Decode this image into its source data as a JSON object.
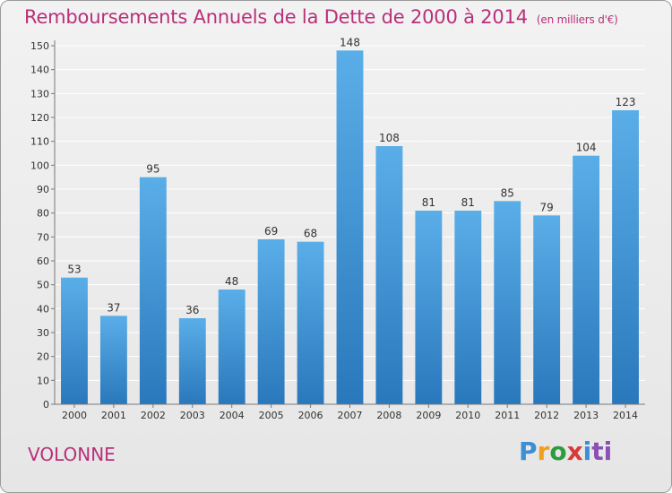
{
  "header": {
    "title": "Remboursements Annuels de la Dette de 2000 à 2014",
    "unit": "(en milliers d'€)"
  },
  "footer": {
    "town": "VOLONNE",
    "logo_letters": [
      "P",
      "r",
      "o",
      "x",
      "i",
      "ti"
    ]
  },
  "colors": {
    "title": "#b8307a",
    "bar_top": "#5aaee8",
    "bar_bottom": "#2a78bc",
    "grid": "#ffffff"
  },
  "chart_data": {
    "type": "bar",
    "title": "Remboursements Annuels de la Dette de 2000 à 2014",
    "xlabel": "",
    "ylabel": "",
    "categories": [
      "2000",
      "2001",
      "2002",
      "2003",
      "2004",
      "2005",
      "2006",
      "2007",
      "2008",
      "2009",
      "2010",
      "2011",
      "2012",
      "2013",
      "2014"
    ],
    "values": [
      53,
      37,
      95,
      36,
      48,
      69,
      68,
      148,
      108,
      81,
      81,
      85,
      79,
      104,
      123
    ],
    "ylim": [
      0,
      150
    ],
    "yticks": [
      0,
      10,
      20,
      30,
      40,
      50,
      60,
      70,
      80,
      90,
      100,
      110,
      120,
      130,
      140,
      150
    ],
    "grid": true,
    "legend": "none"
  }
}
